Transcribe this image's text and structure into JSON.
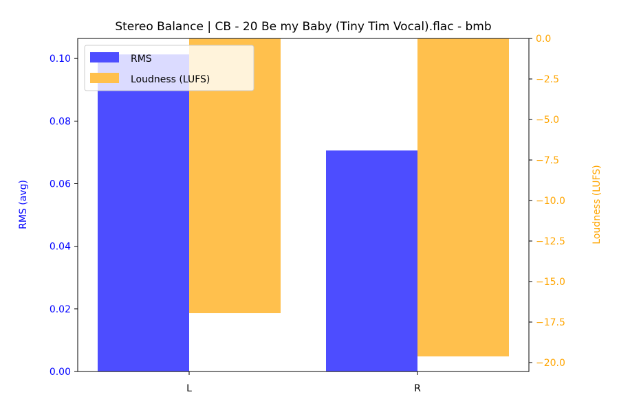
{
  "chart_data": {
    "type": "bar",
    "title": "Stereo Balance | CB - 20 Be my Baby (Tiny Tim Vocal).flac - bmb",
    "categories": [
      "L",
      "R"
    ],
    "series": [
      {
        "name": "RMS",
        "axis": "left",
        "color": "#4d4dff",
        "values": [
          0.1013,
          0.0706
        ]
      },
      {
        "name": "Loudness (LUFS)",
        "axis": "right",
        "color": "#ffc04d",
        "values": [
          -16.95,
          -19.62
        ]
      }
    ],
    "ylabel": "RMS (avg)",
    "ylabel_color": "#0000ff",
    "y2label": "Loudness (LUFS)",
    "y2label_color": "#ffa500",
    "ylim": [
      0,
      0.1064
    ],
    "y2lim": [
      -20.55,
      0
    ],
    "yticks": [
      "0.00",
      "0.02",
      "0.04",
      "0.06",
      "0.08",
      "0.10"
    ],
    "y2ticks": [
      "0.0",
      "−2.5",
      "−5.0",
      "−7.5",
      "−10.0",
      "−12.5",
      "−15.0",
      "−17.5",
      "−20.0"
    ],
    "legend": "top-left"
  }
}
